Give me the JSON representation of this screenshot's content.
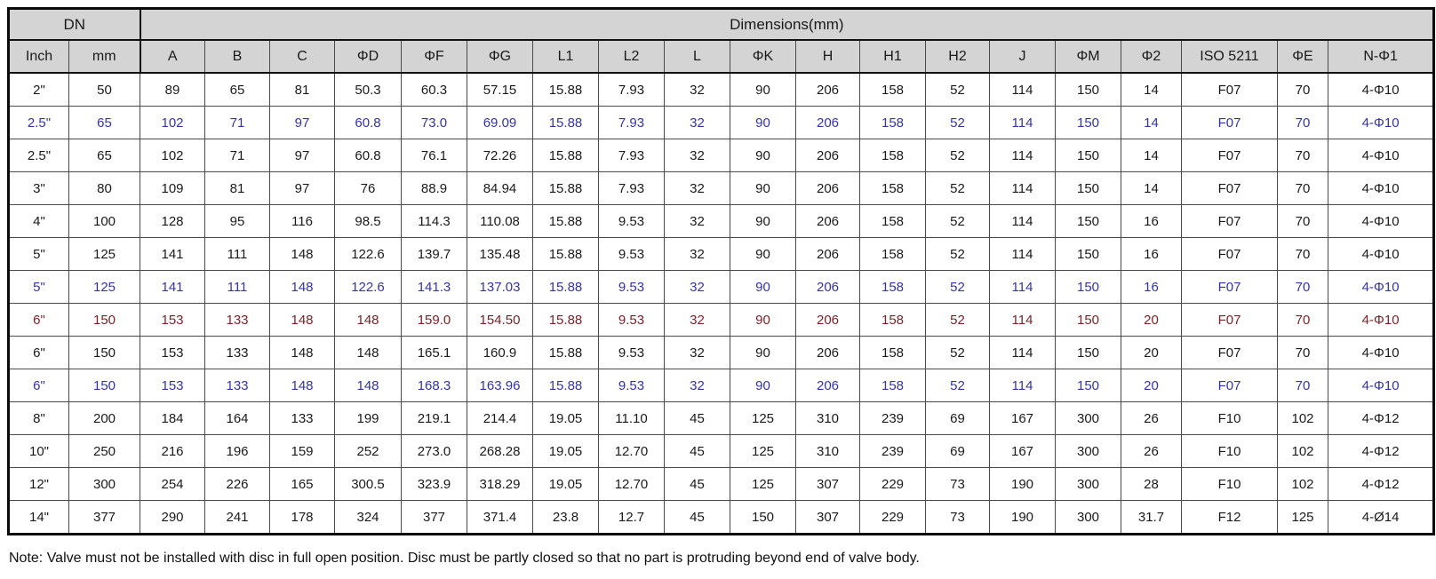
{
  "table": {
    "group_headers": {
      "dn": "DN",
      "dimensions": "Dimensions(mm)"
    },
    "col_headers": [
      "Inch",
      "mm",
      "A",
      "B",
      "C",
      "ΦD",
      "ΦF",
      "ΦG",
      "L1",
      "L2",
      "L",
      "ΦK",
      "H",
      "H1",
      "H2",
      "J",
      "ΦM",
      "Φ2",
      "ISO 5211",
      "ΦE",
      "N-Φ1"
    ],
    "rows": [
      {
        "color": "black",
        "cells": [
          "2\"",
          "50",
          "89",
          "65",
          "81",
          "50.3",
          "60.3",
          "57.15",
          "15.88",
          "7.93",
          "32",
          "90",
          "206",
          "158",
          "52",
          "114",
          "150",
          "14",
          "F07",
          "70",
          "4-Φ10"
        ]
      },
      {
        "color": "blue",
        "cells": [
          "2.5\"",
          "65",
          "102",
          "71",
          "97",
          "60.8",
          "73.0",
          "69.09",
          "15.88",
          "7.93",
          "32",
          "90",
          "206",
          "158",
          "52",
          "114",
          "150",
          "14",
          "F07",
          "70",
          "4-Φ10"
        ]
      },
      {
        "color": "black",
        "cells": [
          "2.5\"",
          "65",
          "102",
          "71",
          "97",
          "60.8",
          "76.1",
          "72.26",
          "15.88",
          "7.93",
          "32",
          "90",
          "206",
          "158",
          "52",
          "114",
          "150",
          "14",
          "F07",
          "70",
          "4-Φ10"
        ]
      },
      {
        "color": "black",
        "cells": [
          "3\"",
          "80",
          "109",
          "81",
          "97",
          "76",
          "88.9",
          "84.94",
          "15.88",
          "7.93",
          "32",
          "90",
          "206",
          "158",
          "52",
          "114",
          "150",
          "14",
          "F07",
          "70",
          "4-Φ10"
        ]
      },
      {
        "color": "black",
        "cells": [
          "4\"",
          "100",
          "128",
          "95",
          "116",
          "98.5",
          "114.3",
          "110.08",
          "15.88",
          "9.53",
          "32",
          "90",
          "206",
          "158",
          "52",
          "114",
          "150",
          "16",
          "F07",
          "70",
          "4-Φ10"
        ]
      },
      {
        "color": "black",
        "cells": [
          "5\"",
          "125",
          "141",
          "111",
          "148",
          "122.6",
          "139.7",
          "135.48",
          "15.88",
          "9.53",
          "32",
          "90",
          "206",
          "158",
          "52",
          "114",
          "150",
          "16",
          "F07",
          "70",
          "4-Φ10"
        ]
      },
      {
        "color": "blue",
        "cells": [
          "5\"",
          "125",
          "141",
          "111",
          "148",
          "122.6",
          "141.3",
          "137.03",
          "15.88",
          "9.53",
          "32",
          "90",
          "206",
          "158",
          "52",
          "114",
          "150",
          "16",
          "F07",
          "70",
          "4-Φ10"
        ]
      },
      {
        "color": "maroon",
        "cells": [
          "6\"",
          "150",
          "153",
          "133",
          "148",
          "148",
          "159.0",
          "154.50",
          "15.88",
          "9.53",
          "32",
          "90",
          "206",
          "158",
          "52",
          "114",
          "150",
          "20",
          "F07",
          "70",
          "4-Φ10"
        ]
      },
      {
        "color": "black",
        "cells": [
          "6\"",
          "150",
          "153",
          "133",
          "148",
          "148",
          "165.1",
          "160.9",
          "15.88",
          "9.53",
          "32",
          "90",
          "206",
          "158",
          "52",
          "114",
          "150",
          "20",
          "F07",
          "70",
          "4-Φ10"
        ]
      },
      {
        "color": "blue",
        "cells": [
          "6\"",
          "150",
          "153",
          "133",
          "148",
          "148",
          "168.3",
          "163.96",
          "15.88",
          "9.53",
          "32",
          "90",
          "206",
          "158",
          "52",
          "114",
          "150",
          "20",
          "F07",
          "70",
          "4-Φ10"
        ]
      },
      {
        "color": "black",
        "cells": [
          "8\"",
          "200",
          "184",
          "164",
          "133",
          "199",
          "219.1",
          "214.4",
          "19.05",
          "11.10",
          "45",
          "125",
          "310",
          "239",
          "69",
          "167",
          "300",
          "26",
          "F10",
          "102",
          "4-Φ12"
        ]
      },
      {
        "color": "black",
        "cells": [
          "10\"",
          "250",
          "216",
          "196",
          "159",
          "252",
          "273.0",
          "268.28",
          "19.05",
          "12.70",
          "45",
          "125",
          "310",
          "239",
          "69",
          "167",
          "300",
          "26",
          "F10",
          "102",
          "4-Φ12"
        ]
      },
      {
        "color": "black",
        "cells": [
          "12\"",
          "300",
          "254",
          "226",
          "165",
          "300.5",
          "323.9",
          "318.29",
          "19.05",
          "12.70",
          "45",
          "125",
          "307",
          "229",
          "73",
          "190",
          "300",
          "28",
          "F10",
          "102",
          "4-Φ12"
        ]
      },
      {
        "color": "black",
        "cells": [
          "14\"",
          "377",
          "290",
          "241",
          "178",
          "324",
          "377",
          "371.4",
          "23.8",
          "12.7",
          "45",
          "150",
          "307",
          "229",
          "73",
          "190",
          "300",
          "31.7",
          "F12",
          "125",
          "4-Ø14"
        ]
      }
    ]
  },
  "note": "Note: Valve must not be installed with disc in full open position. Disc must be partly closed so that no part is protruding beyond end of valve body.",
  "colors": {
    "header_bg": "#d4d4d4",
    "row_blue": "#3333a6",
    "row_maroon": "#7a2228",
    "text_black": "#1a1a1a"
  }
}
